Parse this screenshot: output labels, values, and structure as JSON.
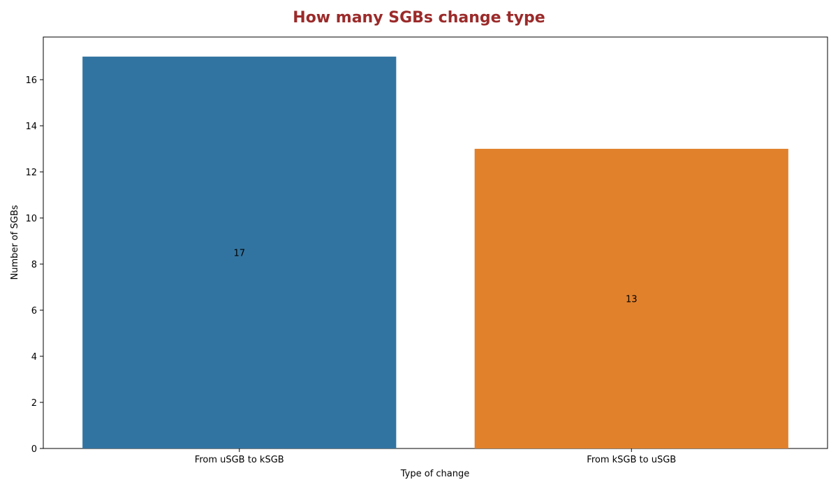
{
  "chart_data": {
    "type": "bar",
    "title": "How many SGBs change type",
    "xlabel": "Type of change",
    "ylabel": "Number of SGBs",
    "categories": [
      "From uSGB to kSGB",
      "From kSGB to uSGB"
    ],
    "values": [
      17,
      13
    ],
    "data_labels": [
      "17",
      "13"
    ],
    "ylim": [
      0,
      17.85
    ],
    "yticks": [
      0,
      2,
      4,
      6,
      8,
      10,
      12,
      14,
      16
    ],
    "ytick_labels": [
      "0",
      "2",
      "4",
      "6",
      "8",
      "10",
      "12",
      "14",
      "16"
    ],
    "grid": false,
    "legend": "none"
  },
  "colors": {
    "title": "#9b2a2a",
    "bars": [
      "#3274a1",
      "#e1812c"
    ],
    "axis": "#000000"
  }
}
